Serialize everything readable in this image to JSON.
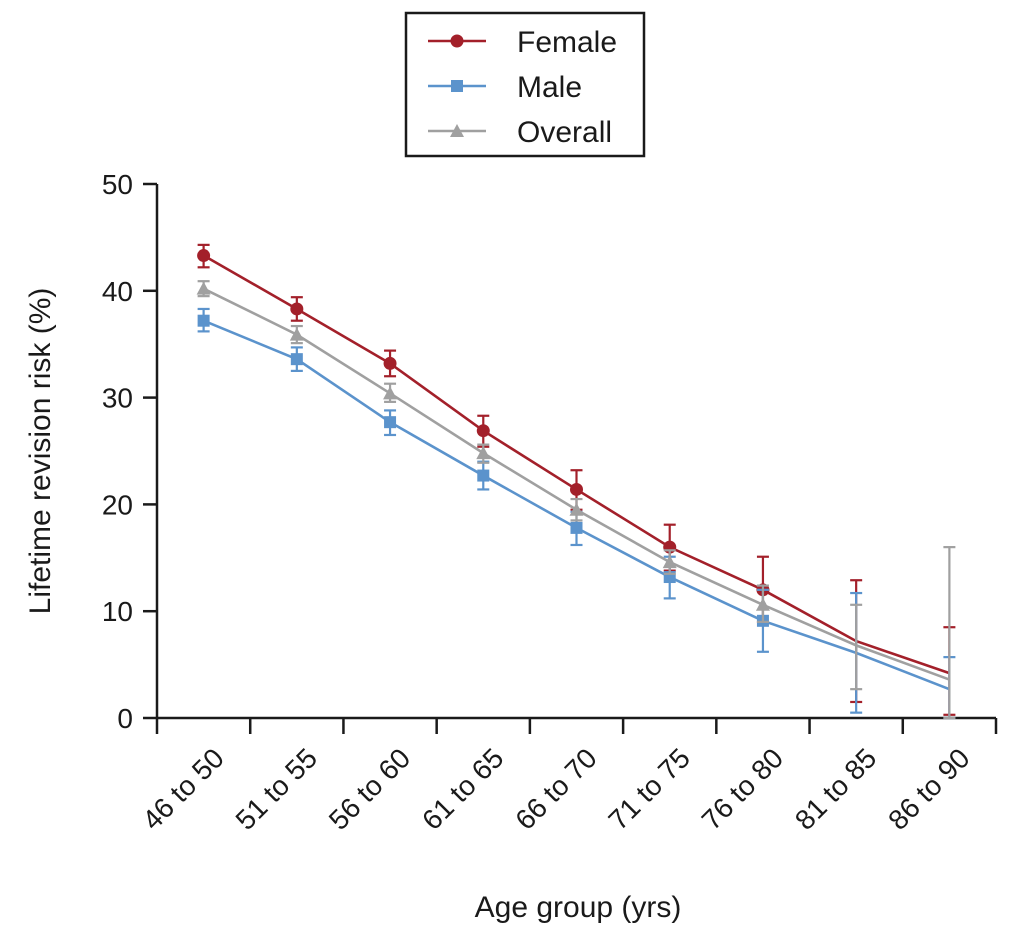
{
  "chart_data": {
    "type": "line",
    "xlabel": "Age group (yrs)",
    "ylabel": "Lifetime revision risk (%)",
    "ylim": [
      0,
      50
    ],
    "yticks": [
      0,
      10,
      20,
      30,
      40,
      50
    ],
    "categories": [
      "46 to 50",
      "51 to 55",
      "56 to 60",
      "61 to 65",
      "66 to 70",
      "71 to 75",
      "76 to 80",
      "81  to 85",
      "86 to 90"
    ],
    "legend_position": "top-center",
    "series": [
      {
        "name": "Female",
        "color": "#a3202a",
        "marker": "circle",
        "values": [
          43.3,
          38.3,
          33.2,
          26.9,
          21.4,
          16.0,
          12.0,
          7.2,
          4.2
        ],
        "error_low": [
          42.2,
          37.2,
          32.0,
          25.4,
          19.5,
          13.8,
          9.0,
          1.5,
          0.3
        ],
        "error_high": [
          44.3,
          39.4,
          34.4,
          28.3,
          23.2,
          18.1,
          15.1,
          12.9,
          8.5
        ],
        "markers_shown": [
          true,
          true,
          true,
          true,
          true,
          true,
          true,
          false,
          false
        ]
      },
      {
        "name": "Male",
        "color": "#5b93cc",
        "marker": "square",
        "values": [
          37.2,
          33.6,
          27.7,
          22.7,
          17.8,
          13.2,
          9.1,
          6.1,
          2.7
        ],
        "error_low": [
          36.2,
          32.5,
          26.5,
          21.4,
          16.2,
          11.2,
          6.2,
          0.5,
          0.0
        ],
        "error_high": [
          38.3,
          34.7,
          28.8,
          24.0,
          19.3,
          15.1,
          12.0,
          11.7,
          5.7
        ],
        "markers_shown": [
          true,
          true,
          true,
          true,
          true,
          true,
          true,
          false,
          false
        ]
      },
      {
        "name": "Overall",
        "color": "#a0a0a0",
        "marker": "triangle",
        "values": [
          40.2,
          35.9,
          30.4,
          24.8,
          19.5,
          14.6,
          10.6,
          6.8,
          3.6
        ],
        "error_low": [
          39.5,
          35.1,
          29.6,
          23.9,
          18.5,
          13.5,
          9.0,
          2.7,
          0.0
        ],
        "error_high": [
          40.9,
          36.7,
          31.3,
          25.6,
          20.5,
          15.7,
          12.4,
          10.6,
          16.0
        ],
        "markers_shown": [
          true,
          true,
          true,
          true,
          true,
          true,
          true,
          false,
          false
        ]
      }
    ]
  }
}
